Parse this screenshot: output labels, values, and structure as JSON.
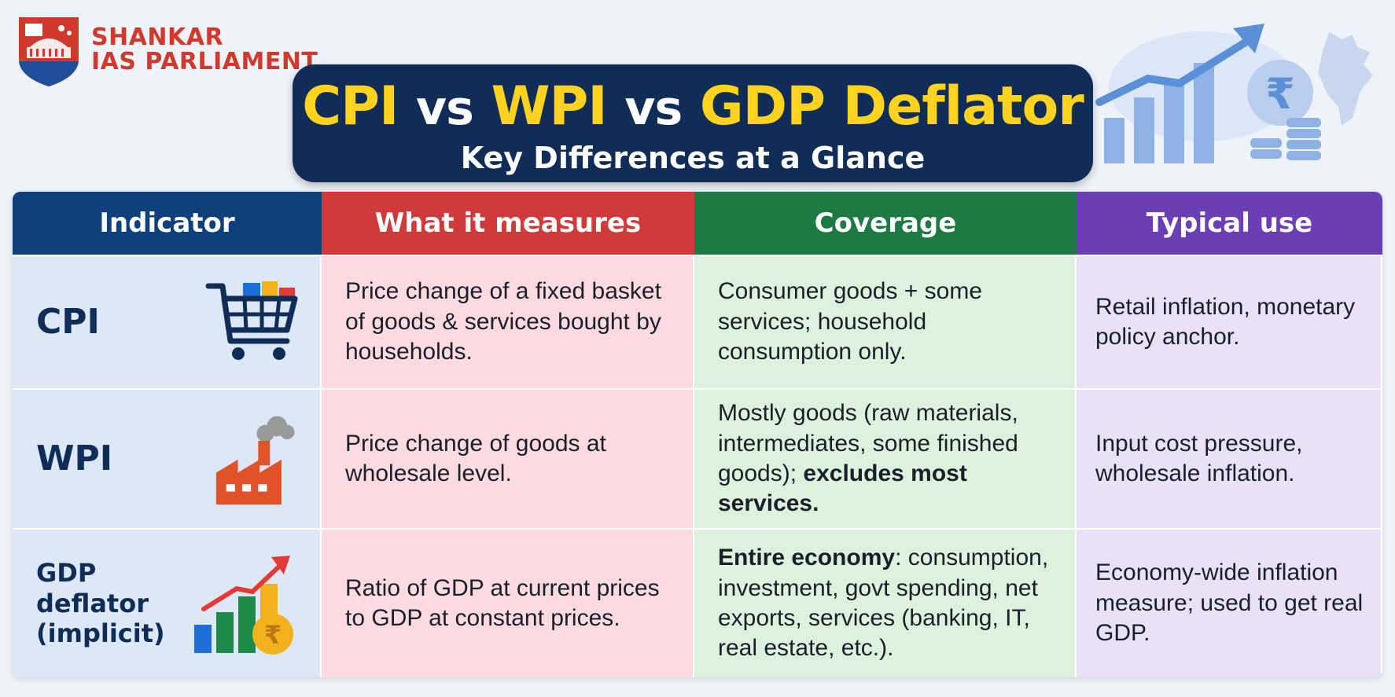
{
  "brand": {
    "line1": "SHANKAR",
    "line2": "IAS PARLIAMENT"
  },
  "title": {
    "part1": "CPI",
    "vs1": "vs",
    "part2": "WPI",
    "vs2": "vs",
    "part3": "GDP Deflator",
    "subtitle": "Key Differences at a Glance"
  },
  "table": {
    "headers": [
      "Indicator",
      "What it measures",
      "Coverage",
      "Typical use"
    ],
    "rows": [
      {
        "indicator": "CPI",
        "icon": "shopping-cart-icon",
        "measures": "Price change of a fixed basket of goods & services bought by households.",
        "coverage": "Consumer goods + some services; household consumption only.",
        "use": "Retail inflation, monetary policy anchor."
      },
      {
        "indicator": "WPI",
        "icon": "factory-icon",
        "measures": "Price change of goods at wholesale level.",
        "coverage_plain": "Mostly goods (raw materials, intermediates, some finished goods); ",
        "coverage_bold": "excludes most services.",
        "use": "Input cost pressure, wholesale inflation."
      },
      {
        "indicator_l1": "GDP",
        "indicator_l2": "deflator",
        "indicator_l3": "(implicit)",
        "icon": "bar-chart-rupee-icon",
        "measures": "Ratio of GDP at current prices to GDP at constant prices.",
        "coverage_bold": "Entire economy",
        "coverage_plain": ": consumption, investment, govt spending, net exports, services (banking, IT, real estate, etc.).",
        "use": "Economy-wide inflation measure; used to get real GDP."
      }
    ]
  },
  "colors": {
    "navy": "#0f2d57",
    "yellow": "#ffd21f",
    "indicator_header": "#0f3f7d",
    "measures_header": "#d03a3a",
    "coverage_header": "#1e7a43",
    "use_header": "#6a3fb5"
  }
}
